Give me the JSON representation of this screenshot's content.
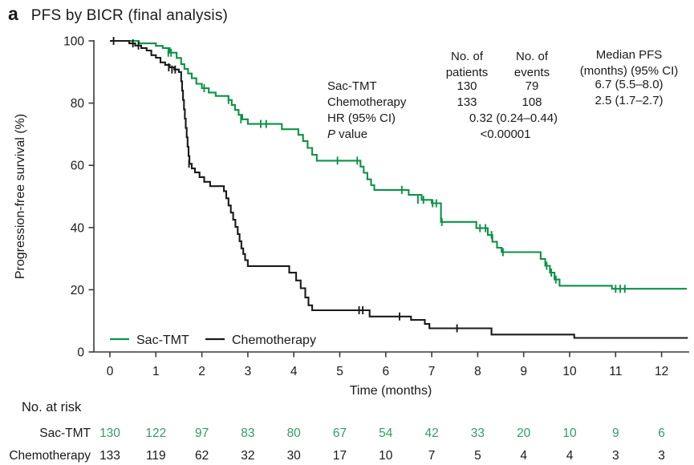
{
  "panel": {
    "label": "a",
    "title": "PFS by BICR (final analysis)"
  },
  "colors": {
    "sac_tmt_green": "#0c9247",
    "risk_green": "#2e9e64",
    "chemo_black": "#1a1a1a",
    "axis": "#3a3a3a",
    "text": "#1a1a1a"
  },
  "stats": {
    "headers": {
      "patients": [
        "No. of",
        "patients"
      ],
      "events": [
        "No. of",
        "events"
      ],
      "median": [
        "Median PFS",
        "(months) (95% CI)"
      ]
    },
    "rows": [
      {
        "label": "Sac-TMT",
        "patients": "130",
        "events": "79",
        "median": "6.7 (5.5–8.0)"
      },
      {
        "label": "Chemotherapy",
        "patients": "133",
        "events": "108",
        "median": "2.5 (1.7–2.7)"
      }
    ],
    "hr": {
      "label": "HR (95% CI)",
      "value": "0.32 (0.24–0.44)"
    },
    "p": {
      "label_italic": "P",
      "label": " value",
      "value": "<0.00001"
    }
  },
  "legend": [
    {
      "name": "Sac-TMT",
      "color": "#0c9247"
    },
    {
      "name": "Chemotherapy",
      "color": "#1a1a1a"
    }
  ],
  "chart_data": {
    "type": "line",
    "subtype": "kaplan-meier-step",
    "title": "PFS by BICR (final analysis)",
    "xlabel": "Time (months)",
    "ylabel": "Progression-free survival (%)",
    "xlim": [
      0,
      12.6
    ],
    "ylim": [
      0,
      100
    ],
    "xticks": [
      0,
      1,
      2,
      3,
      4,
      5,
      6,
      7,
      8,
      9,
      10,
      11,
      12
    ],
    "yticks": [
      0,
      20,
      40,
      60,
      80,
      100
    ],
    "grid": false,
    "legend_position": "inside-bottom-left",
    "axis_color": "#3a3a3a",
    "series": [
      {
        "name": "Sac-TMT",
        "color": "#0c9247",
        "n_patients": 130,
        "n_events": 79,
        "median_pfs": "6.7 (5.5–8.0)",
        "steps": [
          [
            0,
            100
          ],
          [
            0.63,
            99.2
          ],
          [
            1.0,
            98.4
          ],
          [
            1.15,
            97.7
          ],
          [
            1.3,
            96.2
          ],
          [
            1.45,
            94.5
          ],
          [
            1.55,
            92.5
          ],
          [
            1.62,
            91
          ],
          [
            1.7,
            89.5
          ],
          [
            1.78,
            88
          ],
          [
            1.88,
            86.2
          ],
          [
            2.0,
            84.8
          ],
          [
            2.15,
            83.4
          ],
          [
            2.3,
            82.3
          ],
          [
            2.58,
            81
          ],
          [
            2.65,
            79.4
          ],
          [
            2.72,
            77.8
          ],
          [
            2.8,
            76.2
          ],
          [
            2.88,
            74.8
          ],
          [
            3.0,
            73.3
          ],
          [
            3.74,
            71.6
          ],
          [
            4.1,
            69.8
          ],
          [
            4.2,
            67.8
          ],
          [
            4.3,
            65.6
          ],
          [
            4.4,
            63.4
          ],
          [
            4.5,
            61.5
          ],
          [
            5.45,
            59.6
          ],
          [
            5.52,
            57.6
          ],
          [
            5.6,
            55.5
          ],
          [
            5.68,
            53.6
          ],
          [
            5.75,
            52.1
          ],
          [
            6.5,
            50.5
          ],
          [
            6.78,
            48.9
          ],
          [
            7.0,
            47.8
          ],
          [
            7.2,
            41.8
          ],
          [
            7.97,
            39.8
          ],
          [
            8.22,
            37.6
          ],
          [
            8.32,
            35.4
          ],
          [
            8.42,
            33.5
          ],
          [
            8.52,
            32.1
          ],
          [
            9.37,
            29.9
          ],
          [
            9.47,
            27.7
          ],
          [
            9.57,
            25.5
          ],
          [
            9.67,
            23.3
          ],
          [
            9.78,
            21.3
          ],
          [
            10.92,
            20.3
          ],
          [
            12.55,
            20.3
          ]
        ],
        "censors": [
          [
            1.27,
            96.2
          ],
          [
            1.33,
            96.2
          ],
          [
            2.05,
            84.8
          ],
          [
            2.58,
            81
          ],
          [
            2.85,
            74.8
          ],
          [
            3.28,
            73.3
          ],
          [
            3.4,
            73.3
          ],
          [
            4.95,
            61.5
          ],
          [
            5.38,
            61.5
          ],
          [
            6.35,
            52.1
          ],
          [
            6.7,
            48.9
          ],
          [
            6.82,
            48.9
          ],
          [
            7.02,
            47.8
          ],
          [
            7.1,
            47.8
          ],
          [
            7.22,
            41.8
          ],
          [
            8.05,
            39.8
          ],
          [
            8.17,
            39.8
          ],
          [
            8.3,
            37.6
          ],
          [
            8.55,
            32.1
          ],
          [
            9.5,
            27.7
          ],
          [
            9.6,
            25.5
          ],
          [
            9.7,
            23.3
          ],
          [
            11.0,
            20.3
          ],
          [
            11.1,
            20.3
          ],
          [
            11.2,
            20.3
          ]
        ]
      },
      {
        "name": "Chemotherapy",
        "color": "#1a1a1a",
        "n_patients": 133,
        "n_events": 108,
        "median_pfs": "2.5 (1.7–2.7)",
        "steps": [
          [
            0,
            100
          ],
          [
            0.42,
            99.2
          ],
          [
            0.55,
            98.5
          ],
          [
            0.68,
            97.7
          ],
          [
            0.8,
            96.9
          ],
          [
            0.9,
            95.4
          ],
          [
            1.0,
            94.6
          ],
          [
            1.1,
            93.1
          ],
          [
            1.2,
            92.3
          ],
          [
            1.3,
            91.5
          ],
          [
            1.4,
            90.8
          ],
          [
            1.5,
            90
          ],
          [
            1.55,
            87
          ],
          [
            1.57,
            84
          ],
          [
            1.59,
            81
          ],
          [
            1.61,
            78
          ],
          [
            1.63,
            75
          ],
          [
            1.65,
            72
          ],
          [
            1.67,
            69
          ],
          [
            1.69,
            66
          ],
          [
            1.71,
            63
          ],
          [
            1.73,
            60.5
          ],
          [
            1.78,
            59
          ],
          [
            1.85,
            57.7
          ],
          [
            1.95,
            56.2
          ],
          [
            2.05,
            54.7
          ],
          [
            2.18,
            53.3
          ],
          [
            2.48,
            51.7
          ],
          [
            2.53,
            49.4
          ],
          [
            2.58,
            47.1
          ],
          [
            2.63,
            44.8
          ],
          [
            2.68,
            42.5
          ],
          [
            2.73,
            40.2
          ],
          [
            2.78,
            37.9
          ],
          [
            2.82,
            35.6
          ],
          [
            2.86,
            33.3
          ],
          [
            2.9,
            31.5
          ],
          [
            2.94,
            29.5
          ],
          [
            3.0,
            27.6
          ],
          [
            3.9,
            25.5
          ],
          [
            4.05,
            23
          ],
          [
            4.15,
            20.5
          ],
          [
            4.25,
            17.5
          ],
          [
            4.32,
            15
          ],
          [
            4.4,
            13.4
          ],
          [
            5.65,
            11.4
          ],
          [
            6.55,
            10.3
          ],
          [
            6.85,
            9
          ],
          [
            6.95,
            7.6
          ],
          [
            8.3,
            5.6
          ],
          [
            10.1,
            4.5
          ],
          [
            12.57,
            4.5
          ]
        ],
        "censors": [
          [
            0.08,
            100
          ],
          [
            0.5,
            99.2
          ],
          [
            0.62,
            98.5
          ],
          [
            1.28,
            91.5
          ],
          [
            1.35,
            90.8
          ],
          [
            1.42,
            90.8
          ],
          [
            1.72,
            60.5
          ],
          [
            5.42,
            13.4
          ],
          [
            5.5,
            13.4
          ],
          [
            6.3,
            11.4
          ],
          [
            7.55,
            7.6
          ]
        ]
      }
    ]
  },
  "risk_table": {
    "title": "No. at risk",
    "time_points": [
      0,
      1,
      2,
      3,
      4,
      5,
      6,
      7,
      8,
      9,
      10,
      11,
      12
    ],
    "rows": [
      {
        "label": "Sac-TMT",
        "color": "#2e9e64",
        "values": [
          "130",
          "122",
          "97",
          "83",
          "80",
          "67",
          "54",
          "42",
          "33",
          "20",
          "10",
          "9",
          "6"
        ]
      },
      {
        "label": "Chemotherapy",
        "color": "#1a1a1a",
        "values": [
          "133",
          "119",
          "62",
          "32",
          "30",
          "17",
          "10",
          "7",
          "5",
          "4",
          "4",
          "3",
          "3"
        ]
      }
    ]
  }
}
